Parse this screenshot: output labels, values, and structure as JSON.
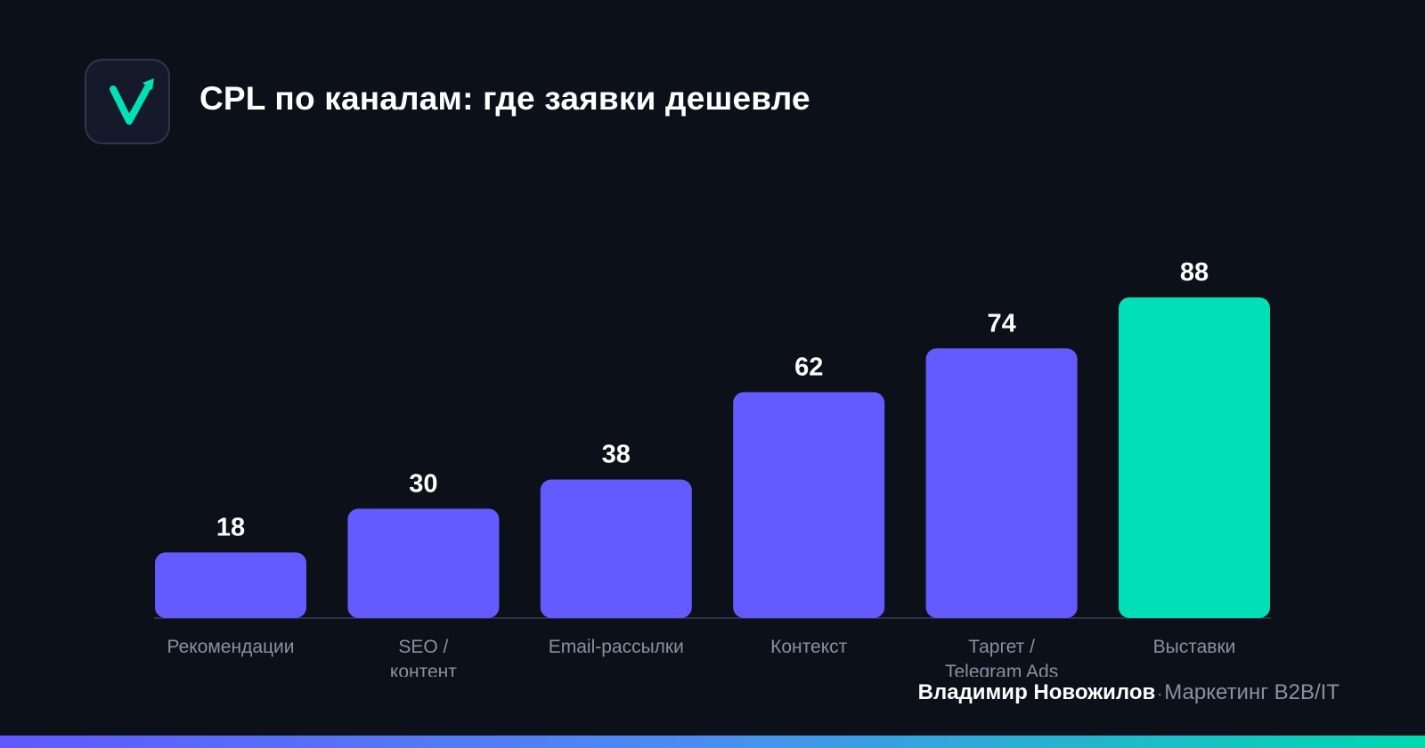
{
  "header": {
    "title": "CPL по каналам: где заявки дешевле",
    "logo_icon": "check-arrow-icon"
  },
  "colors": {
    "background": "#0c1019",
    "bar": "#635bff",
    "highlight": "#00e0b6",
    "label": "#8a90a3"
  },
  "chart_data": {
    "type": "bar",
    "title": "CPL по каналам: где заявки дешевле",
    "xlabel": "",
    "ylabel": "",
    "categories": [
      "Рекомендации",
      "SEO / контент",
      "Email-рассылки",
      "Контекст",
      "Таргет / Telegram Ads",
      "Выставки"
    ],
    "category_lines": [
      [
        "Рекомендации"
      ],
      [
        "SEO /",
        "контент"
      ],
      [
        "Email-рассылки"
      ],
      [
        "Контекст"
      ],
      [
        "Таргет /",
        "Telegram Ads"
      ],
      [
        "Выставки"
      ]
    ],
    "values": [
      18,
      30,
      38,
      62,
      74,
      88
    ],
    "highlight_index": 5,
    "ylim": [
      0,
      88
    ],
    "grid": false,
    "legend": "none"
  },
  "footer": {
    "author": "Владимир Новожилов",
    "separator": "·",
    "tagline": "Маркетинг B2B/IT"
  }
}
